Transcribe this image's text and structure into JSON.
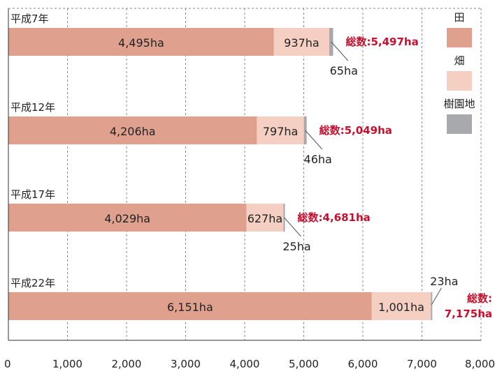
{
  "chart_data": {
    "type": "bar",
    "orientation": "horizontal",
    "stacked": true,
    "categories": [
      "平成7年",
      "平成12年",
      "平成17年",
      "平成22年"
    ],
    "series": [
      {
        "name": "田",
        "values": [
          4495,
          4206,
          4029,
          6151
        ],
        "labels": [
          "4,495ha",
          "4,206ha",
          "4,029ha",
          "6,151ha"
        ],
        "color": "#E0A08E"
      },
      {
        "name": "畑",
        "values": [
          937,
          797,
          627,
          1001
        ],
        "labels": [
          "937ha",
          "797ha",
          "627ha",
          "1,001ha"
        ],
        "color": "#F5CFC2"
      },
      {
        "name": "樹園地",
        "values": [
          65,
          46,
          25,
          23
        ],
        "labels": [
          "65ha",
          "46ha",
          "25ha",
          "23ha"
        ],
        "color": "#A7A9AC"
      }
    ],
    "totals": [
      "総数:5,497ha",
      "総数:5,049ha",
      "総数:4,681ha"
    ],
    "total_last": [
      "総数:",
      "7,175ha"
    ],
    "xlim": [
      0,
      8000
    ],
    "xticks": [
      0,
      1000,
      2000,
      3000,
      4000,
      5000,
      6000,
      7000,
      8000
    ],
    "xtick_labels": [
      "0",
      "1,000",
      "2,000",
      "3,000",
      "4,000",
      "5,000",
      "6,000",
      "7,000",
      "8,000"
    ],
    "grid": "vertical dashed",
    "legend_position": "right",
    "total_color": "#C8102E"
  }
}
